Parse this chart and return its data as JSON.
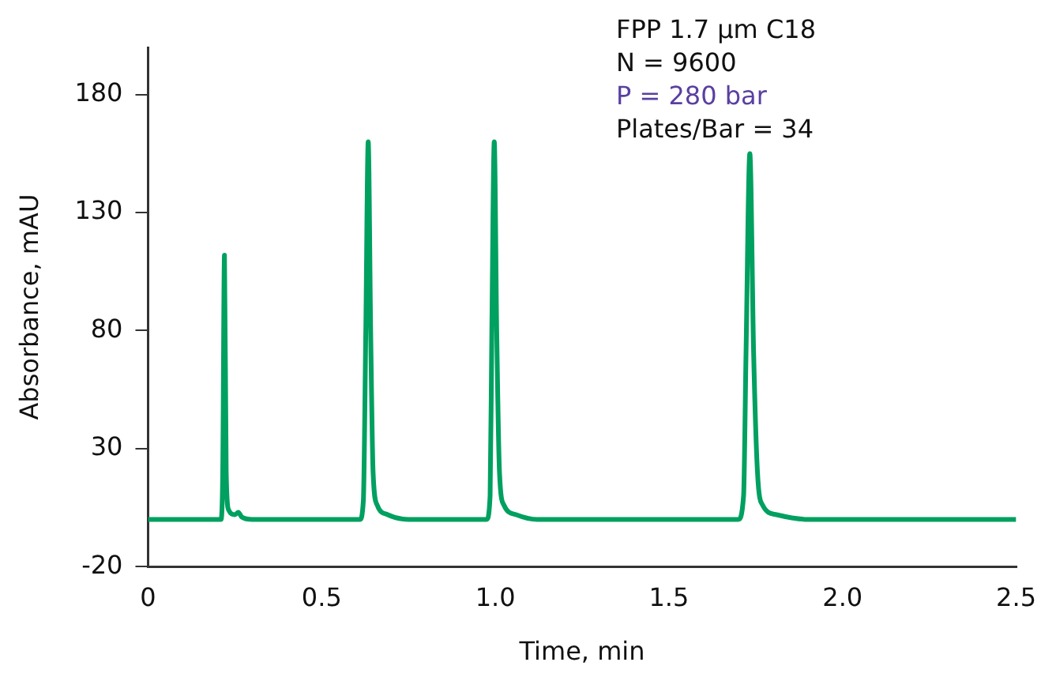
{
  "chart_data": {
    "type": "line",
    "xlabel": "Time, min",
    "ylabel": "Absorbance, mAU",
    "annotations": [
      "FPP 1.7 µm C18",
      "N = 9600",
      "P = 280 bar",
      "Plates/Bar = 34"
    ],
    "xlim": [
      0,
      2.5
    ],
    "xticks": [
      {
        "value": 0,
        "label": "0"
      },
      0.5,
      {
        "value": 1,
        "label": "1.0"
      },
      1.5,
      {
        "value": 2,
        "label": "2.0"
      },
      2.5
    ],
    "ylim": [
      -20,
      200
    ],
    "yticks": [
      -20,
      30,
      80,
      130,
      180
    ],
    "grid": false,
    "legend": false,
    "marker": "none",
    "line_style": "solid",
    "series": [
      {
        "color": "#00a060",
        "x": [
          0,
          0.21,
          0.215,
          0.22,
          0.225,
          0.232,
          0.25,
          0.26,
          0.27,
          0.3,
          0.61,
          0.62,
          0.627,
          0.634,
          0.641,
          0.648,
          0.66,
          0.69,
          0.75,
          0.975,
          0.985,
          0.99,
          0.997,
          1.004,
          1.012,
          1.025,
          1.06,
          1.12,
          1.7,
          1.715,
          1.722,
          1.733,
          1.744,
          1.755,
          1.77,
          1.81,
          1.9,
          2.5
        ],
        "values": [
          0,
          0,
          20,
          112,
          20,
          4,
          2,
          3,
          1,
          0,
          0,
          8,
          80,
          160,
          80,
          20,
          6,
          2,
          0,
          0,
          10,
          80,
          160,
          80,
          20,
          6,
          2,
          0,
          0,
          10,
          70,
          155,
          70,
          20,
          6,
          2,
          0,
          0
        ]
      }
    ]
  }
}
